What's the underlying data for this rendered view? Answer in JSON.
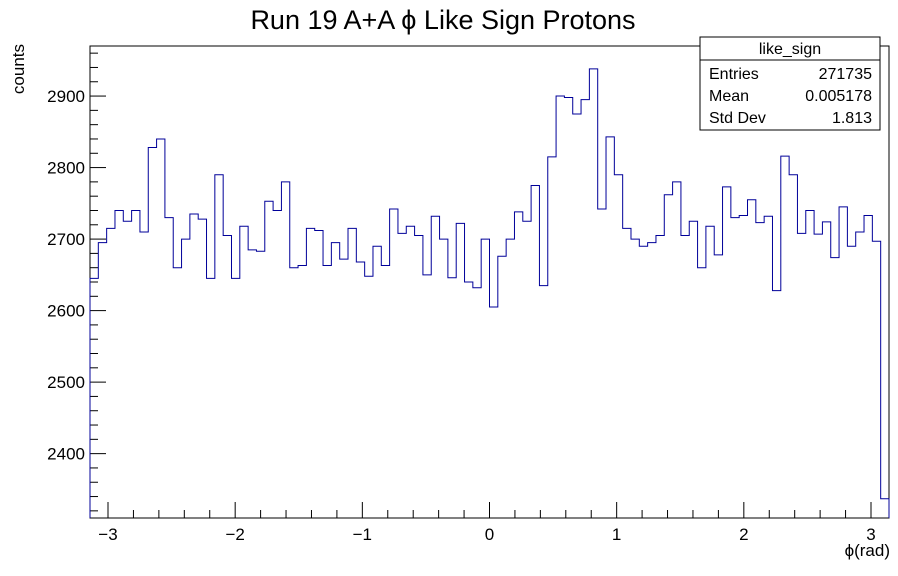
{
  "chart_data": {
    "type": "histogram",
    "title": "Run 19 A+A ϕ Like Sign Protons",
    "xlabel": "ϕ(rad)",
    "ylabel": "counts",
    "xlim": [
      -3.14159,
      3.14159
    ],
    "ylim": [
      2310,
      2970
    ],
    "x_ticks": [
      -3,
      -2,
      -1,
      0,
      1,
      2,
      3
    ],
    "x_tick_labels": [
      "−3",
      "−2",
      "−1",
      "0",
      "1",
      "2",
      "3"
    ],
    "y_ticks": [
      2400,
      2500,
      2600,
      2700,
      2800,
      2900
    ],
    "y_tick_labels": [
      "2400",
      "2500",
      "2600",
      "2700",
      "2800",
      "2900"
    ],
    "line_color": "#000099",
    "grid": false,
    "stats_box": {
      "name": "like_sign",
      "rows": [
        {
          "label": "Entries",
          "value": "271735"
        },
        {
          "label": "Mean",
          "value": "0.005178"
        },
        {
          "label": "Std Dev",
          "value": "1.813"
        }
      ],
      "position": "top-right"
    },
    "values": [
      2645,
      2695,
      2715,
      2740,
      2725,
      2740,
      2710,
      2828,
      2840,
      2730,
      2660,
      2700,
      2735,
      2728,
      2645,
      2790,
      2705,
      2645,
      2718,
      2685,
      2683,
      2753,
      2740,
      2780,
      2660,
      2663,
      2715,
      2712,
      2663,
      2695,
      2672,
      2715,
      2668,
      2648,
      2690,
      2663,
      2742,
      2708,
      2718,
      2705,
      2650,
      2732,
      2700,
      2646,
      2722,
      2640,
      2632,
      2700,
      2605,
      2676,
      2700,
      2738,
      2725,
      2775,
      2635,
      2815,
      2900,
      2898,
      2875,
      2895,
      2938,
      2742,
      2843,
      2790,
      2715,
      2700,
      2690,
      2695,
      2705,
      2762,
      2780,
      2705,
      2725,
      2660,
      2718,
      2678,
      2773,
      2730,
      2733,
      2755,
      2723,
      2732,
      2628,
      2816,
      2790,
      2708,
      2740,
      2707,
      2724,
      2674,
      2745,
      2690,
      2710,
      2733,
      2697,
      2337
    ]
  }
}
